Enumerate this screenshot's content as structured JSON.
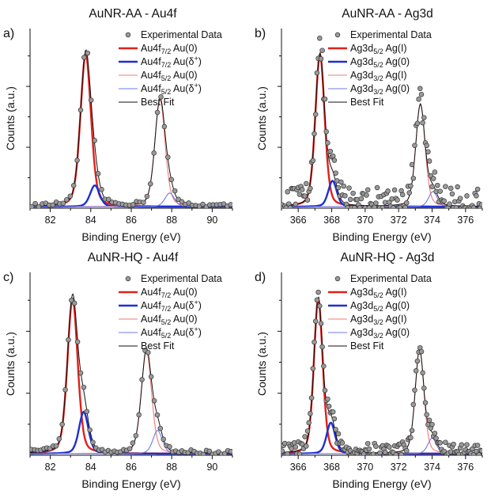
{
  "chart_data": [
    {
      "type": "scatter",
      "panel_label": "a)",
      "title": "AuNR-AA - Au4f",
      "xlabel": "Binding Energy (eV)",
      "ylabel": "Counts (a.u.)",
      "xlim": [
        81,
        91
      ],
      "xticks": [
        82,
        84,
        86,
        88,
        90
      ],
      "ylim": [
        0,
        1.18
      ],
      "scatter_points_shown": 58,
      "legend": [
        {
          "text": "Experimental Data",
          "style": "marker"
        },
        {
          "text": "Au4f",
          "sub": "7/2",
          "suffix": " Au(0)",
          "sup": "",
          "color": "#e0201b",
          "width": 2.4
        },
        {
          "text": "Au4f",
          "sub": "7/2",
          "suffix": " Au(δ",
          "sup": "+",
          "tail": ")",
          "color": "#1f2fd0",
          "width": 2.4
        },
        {
          "text": "Au4f",
          "sub": "5/2",
          "suffix": " Au(0)",
          "sup": "",
          "color": "#f07a7a",
          "width": 1.1
        },
        {
          "text": "Au4f",
          "sub": "5/2",
          "suffix": " Au(δ",
          "sup": "+",
          "tail": ")",
          "color": "#6f78e8",
          "width": 1.1
        },
        {
          "text": "Best Fit",
          "style": "fit",
          "color": "#111111",
          "width": 1.0
        }
      ],
      "peaks": [
        {
          "name": "Au4f7/2 Au(0)",
          "center": 83.75,
          "height": 1.0,
          "fwhm": 0.62
        },
        {
          "name": "Au4f7/2 Au(δ+)",
          "center": 84.2,
          "height": 0.14,
          "fwhm": 0.55
        },
        {
          "name": "Au4f5/2 Au(0)",
          "center": 87.42,
          "height": 0.7,
          "fwhm": 0.6
        },
        {
          "name": "Au4f5/2 Au(δ+)",
          "center": 87.9,
          "height": 0.09,
          "fwhm": 0.55
        }
      ],
      "scatter_noise": 0.012
    },
    {
      "type": "scatter",
      "panel_label": "b)",
      "title": "AuNR-AA - Ag3d",
      "xlabel": "Binding Energy (eV)",
      "ylabel": "Counts (a.u.)",
      "xlim": [
        365,
        377
      ],
      "xticks": [
        366,
        368,
        370,
        372,
        374,
        376
      ],
      "ylim": [
        0,
        1.18
      ],
      "scatter_points_shown": 150,
      "legend": [
        {
          "text": "Experimental Data",
          "style": "marker"
        },
        {
          "text": "Ag3d",
          "sub": "5/2",
          "suffix": " Ag(I)",
          "sup": "",
          "color": "#e0201b",
          "width": 2.4
        },
        {
          "text": "Ag3d",
          "sub": "5/2",
          "suffix": " Ag(0)",
          "sup": "",
          "color": "#1f2fd0",
          "width": 2.4
        },
        {
          "text": "Ag3d",
          "sub": "3/2",
          "suffix": " Ag(I)",
          "sup": "",
          "color": "#f07a7a",
          "width": 1.1
        },
        {
          "text": "Ag3d",
          "sub": "3/2",
          "suffix": " Ag(0)",
          "sup": "",
          "color": "#6f78e8",
          "width": 1.1
        },
        {
          "text": "Best Fit",
          "style": "fit",
          "color": "#111111",
          "width": 1.0
        }
      ],
      "peaks": [
        {
          "name": "Ag3d5/2 Ag(I)",
          "center": 367.3,
          "height": 1.0,
          "fwhm": 0.66
        },
        {
          "name": "Ag3d5/2 Ag(0)",
          "center": 368.05,
          "height": 0.17,
          "fwhm": 0.6
        },
        {
          "name": "Ag3d3/2 Ag(I)",
          "center": 373.3,
          "height": 0.67,
          "fwhm": 0.66
        },
        {
          "name": "Ag3d3/2 Ag(0)",
          "center": 374.05,
          "height": 0.1,
          "fwhm": 0.6
        }
      ],
      "scatter_noise": 0.09
    },
    {
      "type": "scatter",
      "panel_label": "c)",
      "title": "AuNR-HQ - Au4f",
      "xlabel": "Binding Energy (eV)",
      "ylabel": "Counts (a.u.)",
      "xlim": [
        81,
        91
      ],
      "xticks": [
        82,
        84,
        86,
        88,
        90
      ],
      "ylim": [
        0,
        1.18
      ],
      "scatter_points_shown": 66,
      "legend": [
        {
          "text": "Experimental Data",
          "style": "marker"
        },
        {
          "text": "Au4f",
          "sub": "7/2",
          "suffix": " Au(0)",
          "sup": "",
          "color": "#e0201b",
          "width": 2.4
        },
        {
          "text": "Au4f",
          "sub": "7/2",
          "suffix": " Au(δ",
          "sup": "+",
          "tail": ")",
          "color": "#1f2fd0",
          "width": 2.4
        },
        {
          "text": "Au4f",
          "sub": "5/2",
          "suffix": " Au(0)",
          "sup": "",
          "color": "#f07a7a",
          "width": 1.1
        },
        {
          "text": "Au4f",
          "sub": "5/2",
          "suffix": " Au(δ",
          "sup": "+",
          "tail": ")",
          "color": "#6f78e8",
          "width": 1.1
        },
        {
          "text": "Best Fit",
          "style": "fit",
          "color": "#111111",
          "width": 1.0
        }
      ],
      "peaks": [
        {
          "name": "Au4f7/2 Au(0)",
          "center": 83.1,
          "height": 1.0,
          "fwhm": 0.6
        },
        {
          "name": "Au4f7/2 Au(δ+)",
          "center": 83.65,
          "height": 0.27,
          "fwhm": 0.55
        },
        {
          "name": "Au4f5/2 Au(0)",
          "center": 86.75,
          "height": 0.66,
          "fwhm": 0.6
        },
        {
          "name": "Au4f5/2 Au(δ+)",
          "center": 87.3,
          "height": 0.15,
          "fwhm": 0.55
        }
      ],
      "scatter_noise": 0.014
    },
    {
      "type": "scatter",
      "panel_label": "d)",
      "title": "AuNR-HQ - Ag3d",
      "xlabel": "Binding Energy (eV)",
      "ylabel": "Counts (a.u.)",
      "xlim": [
        365,
        377
      ],
      "xticks": [
        366,
        368,
        370,
        372,
        374,
        376
      ],
      "ylim": [
        0,
        1.18
      ],
      "scatter_points_shown": 150,
      "legend": [
        {
          "text": "Experimental Data",
          "style": "marker"
        },
        {
          "text": "Ag3d",
          "sub": "5/2",
          "suffix": " Ag(I)",
          "sup": "",
          "color": "#e0201b",
          "width": 2.4
        },
        {
          "text": "Ag3d",
          "sub": "5/2",
          "suffix": " Ag(0)",
          "sup": "",
          "color": "#1f2fd0",
          "width": 2.4
        },
        {
          "text": "Ag3d",
          "sub": "3/2",
          "suffix": " Ag(I)",
          "sup": "",
          "color": "#f07a7a",
          "width": 1.1
        },
        {
          "text": "Ag3d",
          "sub": "3/2",
          "suffix": " Ag(0)",
          "sup": "",
          "color": "#6f78e8",
          "width": 1.1
        },
        {
          "text": "Best Fit",
          "style": "fit",
          "color": "#111111",
          "width": 1.0
        }
      ],
      "peaks": [
        {
          "name": "Ag3d5/2 Ag(I)",
          "center": 367.2,
          "height": 1.0,
          "fwhm": 0.62
        },
        {
          "name": "Ag3d5/2 Ag(0)",
          "center": 367.95,
          "height": 0.2,
          "fwhm": 0.6
        },
        {
          "name": "Ag3d3/2 Ag(I)",
          "center": 373.25,
          "height": 0.67,
          "fwhm": 0.62
        },
        {
          "name": "Ag3d3/2 Ag(0)",
          "center": 374.0,
          "height": 0.1,
          "fwhm": 0.6
        }
      ],
      "scatter_noise": 0.045
    }
  ]
}
